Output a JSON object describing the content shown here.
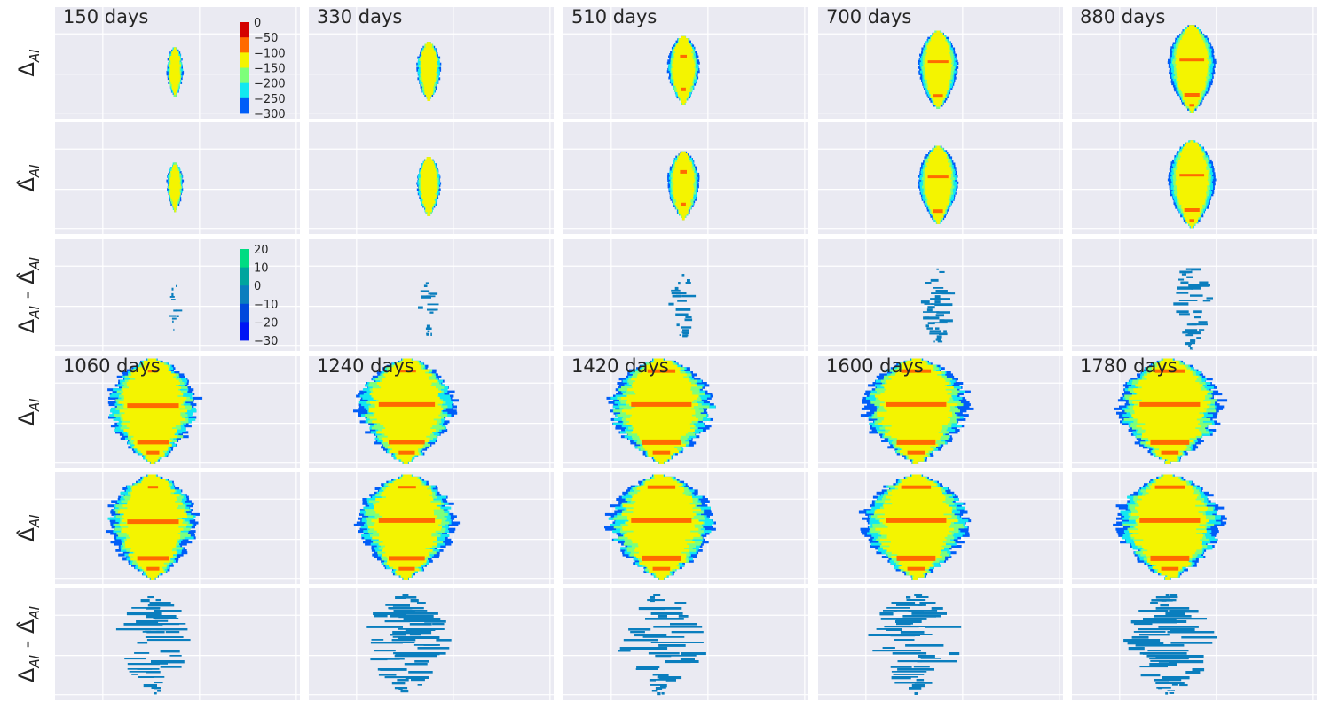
{
  "chart_data": {
    "type": "heatmap",
    "layout": {
      "rows": 6,
      "cols": 5
    },
    "time_labels_top": [
      "150 days",
      "330 days",
      "510 days",
      "700 days",
      "880 days"
    ],
    "time_labels_bottom": [
      "1060 days",
      "1240 days",
      "1420 days",
      "1600 days",
      "1780 days"
    ],
    "row_labels": [
      "Δ_AI",
      "Δ̂_AI",
      "Δ_AI - Δ̂_AI"
    ],
    "colorbar_main": {
      "ticks": [
        "0",
        "−50",
        "−100",
        "−150",
        "−200",
        "−250",
        "−300"
      ],
      "colors": [
        "#d40000",
        "#ff6a00",
        "#f4f400",
        "#7dff7a",
        "#12e8f0",
        "#005df8"
      ]
    },
    "colorbar_diff": {
      "ticks": [
        "20",
        "10",
        "0",
        "−10",
        "−20",
        "−30"
      ],
      "colors": [
        "#00dc82",
        "#00a59e",
        "#0a7ebe",
        "#0048dc",
        "#0014f5"
      ]
    },
    "grid": true,
    "background_color": "#eaeaf2",
    "grid_color": "#ffffff"
  }
}
